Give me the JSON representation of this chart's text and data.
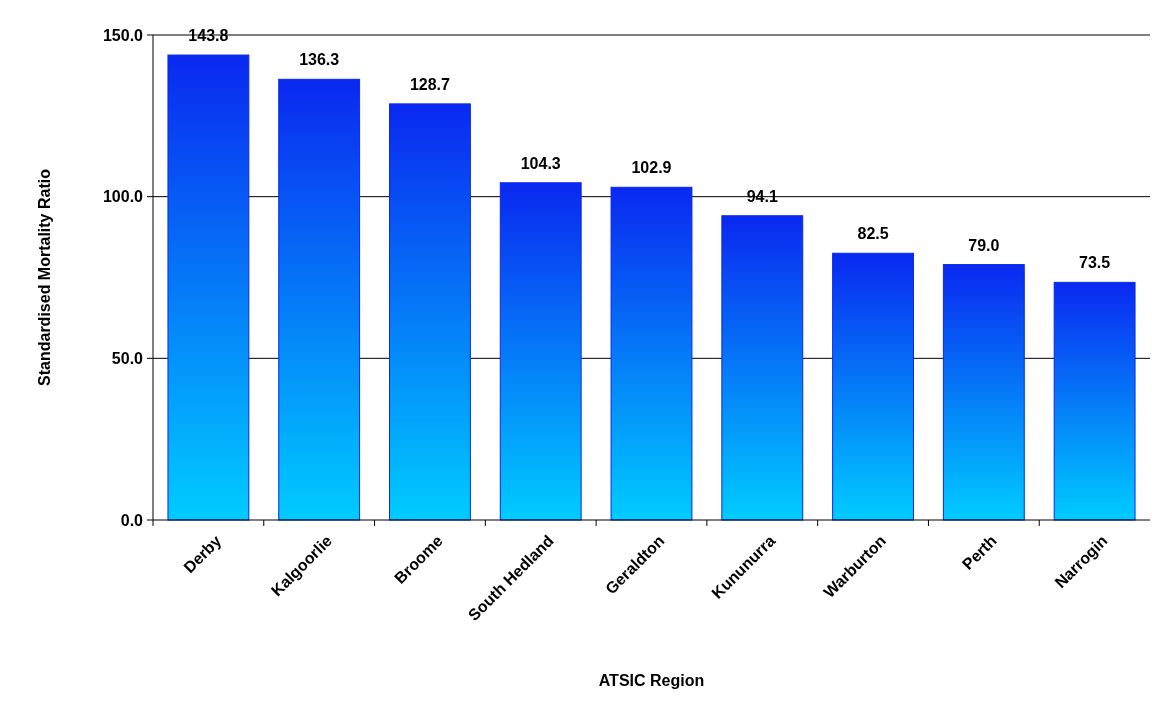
{
  "chart_data": {
    "type": "bar",
    "xlabel": "ATSIC Region",
    "ylabel": "Standardised Mortality Ratio",
    "categories": [
      "Derby",
      "Kalgoorlie",
      "Broome",
      "South Hedland",
      "Geraldton",
      "Kununurra",
      "Warburton",
      "Perth",
      "Narrogin"
    ],
    "values": [
      143.8,
      136.3,
      128.7,
      104.3,
      102.9,
      94.1,
      82.5,
      79.0,
      73.5
    ],
    "color": "#0a28f0",
    "ylim": [
      0,
      150
    ],
    "yticks": [
      {
        "value": 0,
        "label": "0.0"
      },
      {
        "value": 50,
        "label": "50.0"
      },
      {
        "value": 100,
        "label": "100.0"
      },
      {
        "value": 150,
        "label": "150.0"
      }
    ],
    "grid": "y",
    "value_labels": [
      "143.8",
      "136.3",
      "128.7",
      "104.3",
      "102.9",
      "94.1",
      "82.5",
      "79.0",
      "73.5"
    ]
  }
}
